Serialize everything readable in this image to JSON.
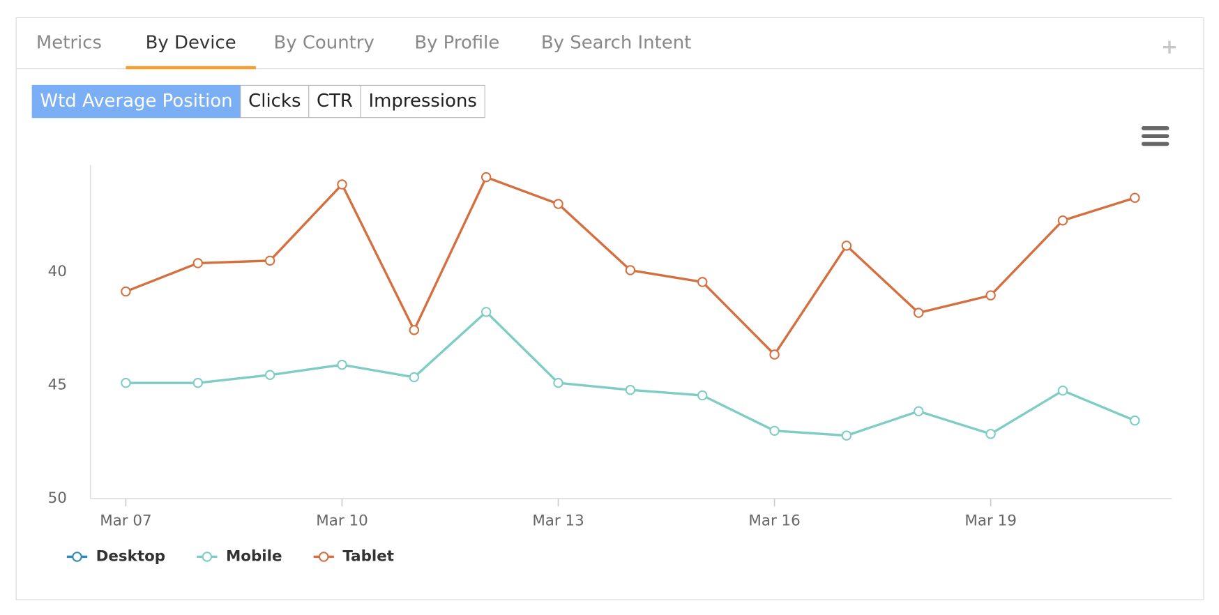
{
  "ui": {
    "tabs": [
      "Metrics",
      "By Device",
      "By Country",
      "By Profile",
      "By Search Intent"
    ],
    "active_tab": 1,
    "buttons": [
      "Wtd Average Position",
      "Clicks",
      "CTR",
      "Impressions"
    ],
    "active_button": 0
  },
  "chart_data": {
    "type": "line",
    "categories": [
      "Mar 07",
      null,
      null,
      "Mar 10",
      null,
      null,
      "Mar 13",
      null,
      null,
      "Mar 16",
      null,
      null,
      "Mar 19",
      null,
      null
    ],
    "series": [
      {
        "name": "Desktop",
        "color": "#2a8ab5",
        "values": [
          null,
          null,
          null,
          null,
          null,
          null,
          null,
          null,
          null,
          null,
          null,
          null,
          null,
          null,
          null
        ]
      },
      {
        "name": "Mobile",
        "color": "#7ecdc4",
        "values": [
          44.9,
          44.9,
          44.55,
          44.1,
          44.65,
          41.77,
          44.9,
          45.21,
          45.45,
          47.01,
          47.22,
          46.15,
          47.15,
          45.24,
          46.56
        ]
      },
      {
        "name": "Tablet",
        "color": "#d4703f",
        "values": [
          40.87,
          39.62,
          39.51,
          36.15,
          42.57,
          35.83,
          37.01,
          39.93,
          40.45,
          43.65,
          38.85,
          41.81,
          41.04,
          37.74,
          36.74
        ]
      }
    ],
    "ylim": [
      50,
      35.3
    ],
    "yticks": [
      40,
      45,
      50
    ],
    "grid": false,
    "legend": "bottom-left"
  }
}
